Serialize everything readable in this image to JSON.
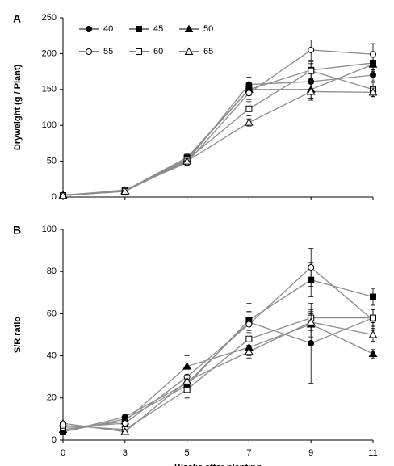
{
  "chart_data": [
    {
      "type": "line",
      "panel_label": "A",
      "ylabel": "Dryweight (g / Plant)",
      "categories": [
        null,
        null,
        null,
        null,
        null,
        null
      ],
      "ylim": [
        0,
        250
      ],
      "yticks": [
        0,
        50,
        100,
        150,
        200,
        250
      ],
      "line_color": "#8c8c8c",
      "legend": "upper left",
      "series": [
        {
          "name": "40",
          "color": "#000000",
          "marker": "circle",
          "filled": true,
          "values": [
            2,
            9,
            50,
            157,
            161,
            170
          ],
          "errors": [
            1,
            2,
            4,
            10,
            15,
            8
          ]
        },
        {
          "name": "45",
          "color": "#000000",
          "marker": "square",
          "filled": true,
          "values": [
            2,
            9,
            55,
            150,
            177,
            187
          ],
          "errors": [
            1,
            2,
            5,
            8,
            12,
            10
          ]
        },
        {
          "name": "50",
          "color": "#000000",
          "marker": "triangle",
          "filled": true,
          "values": [
            3,
            9,
            53,
            150,
            150,
            185
          ],
          "errors": [
            1,
            2,
            5,
            8,
            12,
            10
          ]
        },
        {
          "name": "55",
          "color": "#000000",
          "marker": "circle",
          "filled": false,
          "values": [
            2,
            10,
            48,
            145,
            205,
            199
          ],
          "errors": [
            1,
            2,
            4,
            9,
            14,
            15
          ]
        },
        {
          "name": "60",
          "color": "#000000",
          "marker": "square",
          "filled": false,
          "values": [
            2,
            8,
            52,
            123,
            176,
            150
          ],
          "errors": [
            1,
            2,
            4,
            10,
            10,
            10
          ]
        },
        {
          "name": "65",
          "color": "#000000",
          "marker": "triangle",
          "filled": false,
          "values": [
            2,
            8,
            50,
            104,
            147,
            146
          ],
          "errors": [
            1,
            2,
            4,
            5,
            12,
            6
          ]
        }
      ]
    },
    {
      "type": "line",
      "panel_label": "B",
      "ylabel": "S/R ratio",
      "xlabel": "Weeks after planting",
      "categories": [
        "0",
        "3",
        "5",
        "7",
        "9",
        "11"
      ],
      "ylim": [
        0,
        100
      ],
      "yticks": [
        0,
        20,
        40,
        60,
        80,
        100
      ],
      "line_color": "#8c8c8c",
      "series": [
        {
          "name": "40",
          "color": "#000000",
          "marker": "circle",
          "filled": true,
          "values": [
            4,
            11,
            27,
            56,
            46,
            58
          ],
          "errors": [
            1,
            1,
            3,
            5,
            19,
            4
          ]
        },
        {
          "name": "45",
          "color": "#000000",
          "marker": "square",
          "filled": true,
          "values": [
            4,
            10,
            26,
            57,
            76,
            68
          ],
          "errors": [
            1,
            1,
            3,
            8,
            8,
            4
          ]
        },
        {
          "name": "50",
          "color": "#000000",
          "marker": "triangle",
          "filled": true,
          "values": [
            5,
            9,
            35,
            44,
            55,
            41
          ],
          "errors": [
            1,
            1,
            5,
            4,
            6,
            2
          ]
        },
        {
          "name": "55",
          "color": "#000000",
          "marker": "circle",
          "filled": false,
          "values": [
            6,
            8,
            30,
            55,
            82,
            57
          ],
          "errors": [
            1,
            1,
            4,
            6,
            9,
            5
          ]
        },
        {
          "name": "60",
          "color": "#000000",
          "marker": "square",
          "filled": false,
          "values": [
            7,
            5,
            24,
            48,
            58,
            58
          ],
          "errors": [
            1,
            1,
            4,
            4,
            4,
            4
          ]
        },
        {
          "name": "65",
          "color": "#000000",
          "marker": "triangle",
          "filled": false,
          "values": [
            8,
            4,
            28,
            42,
            56,
            50
          ],
          "errors": [
            1,
            1,
            3,
            3,
            4,
            3
          ]
        }
      ]
    }
  ]
}
